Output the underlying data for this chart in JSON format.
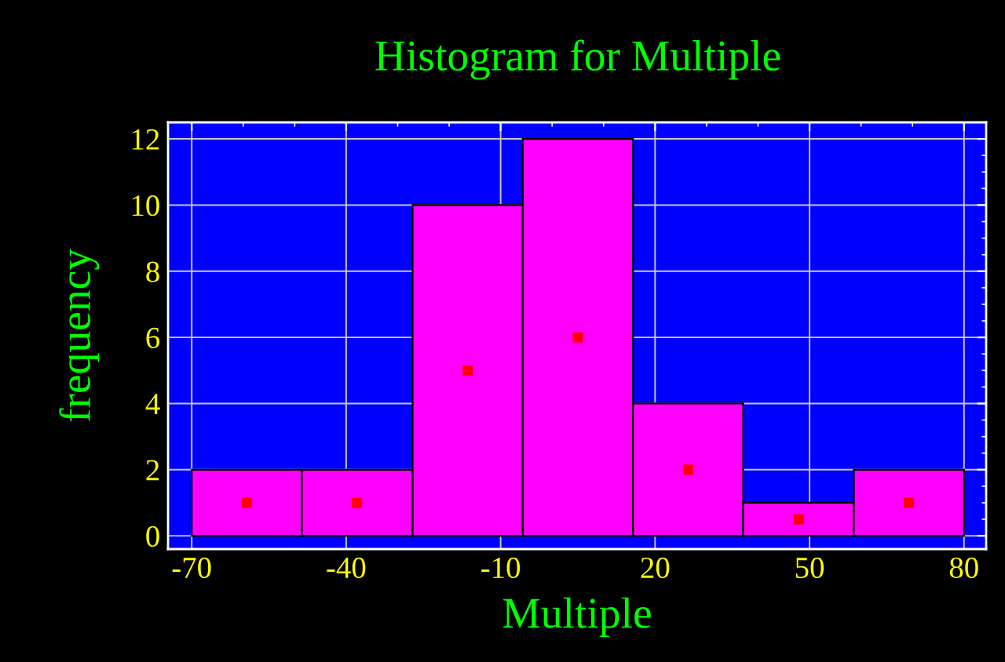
{
  "chart_data": {
    "type": "histogram",
    "title": "Histogram for Multiple",
    "xlabel": "Multiple",
    "ylabel": "frequency",
    "bins": [
      -70,
      -48.6,
      -27.1,
      -5.7,
      15.7,
      37.1,
      58.6,
      80
    ],
    "values": [
      2,
      2,
      10,
      12,
      4,
      1,
      2
    ],
    "color": "#ff00ff",
    "series": [
      {
        "type": "scatter",
        "color": "#ff0000",
        "marker": "square",
        "x": [
          -59.3,
          -37.9,
          -16.4,
          5.0,
          26.4,
          47.9,
          69.3
        ],
        "values": [
          1,
          1,
          5,
          6,
          2,
          0.5,
          1
        ]
      }
    ],
    "xlim": [
      -74.6,
      84.3
    ],
    "ylim": [
      -0.4,
      12.5
    ],
    "xticks": [
      -70,
      -40,
      -10,
      20,
      50,
      80
    ],
    "yticks": [
      0,
      2,
      4,
      6,
      8,
      10,
      12
    ],
    "grid": true
  }
}
